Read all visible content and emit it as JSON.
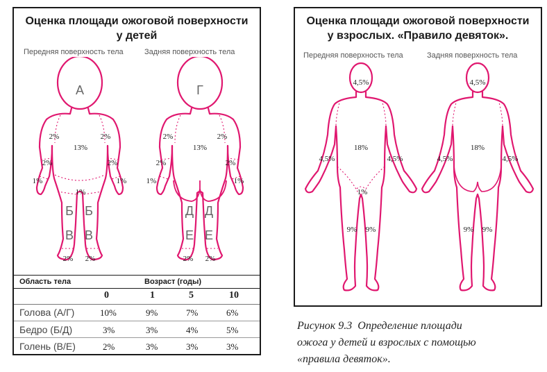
{
  "left": {
    "title_line1": "Оценка площади ожоговой поверхности",
    "title_line2": "у детей",
    "front_label": "Передняя поверхность тела",
    "back_label": "Задняя поверхность тела",
    "front_figure": {
      "head": "А",
      "arm_upper_left": "2%",
      "arm_upper_right": "2%",
      "forearm_left": "2%",
      "forearm_right": "2%",
      "hand_left": "1%",
      "hand_right": "1%",
      "trunk": "13%",
      "genitals": "1%",
      "thigh_left": "Б",
      "thigh_right": "Б",
      "shin_left": "В",
      "shin_right": "В",
      "foot_left": "2%",
      "foot_right": "2%"
    },
    "back_figure": {
      "head": "Г",
      "arm_upper_left": "2%",
      "arm_upper_right": "2%",
      "forearm_left": "2%",
      "forearm_right": "2%",
      "hand_left": "1%",
      "hand_right": "1%",
      "trunk": "13%",
      "thigh_left": "Д",
      "thigh_right": "Д",
      "shin_left": "Е",
      "shin_right": "Е",
      "foot_left": "2%",
      "foot_right": "2%"
    },
    "table": {
      "area_header": "Область тела",
      "age_header": "Возраст (годы)",
      "ages": [
        "0",
        "1",
        "5",
        "10"
      ],
      "rows": [
        {
          "label": "Голова (А/Г)",
          "values": [
            "10%",
            "9%",
            "7%",
            "6%"
          ]
        },
        {
          "label": "Бедро (Б/Д)",
          "values": [
            "3%",
            "3%",
            "4%",
            "5%"
          ]
        },
        {
          "label": "Голень (В/Е)",
          "values": [
            "2%",
            "3%",
            "3%",
            "3%"
          ]
        }
      ]
    }
  },
  "right": {
    "title_line1": "Оценка площади ожоговой поверхности",
    "title_line2": "у взрослых. «Правило девяток».",
    "front_label": "Передняя поверхность тела",
    "back_label": "Задняя поверхность тела",
    "front_figure": {
      "head": "4,5%",
      "trunk": "18%",
      "arm_left": "4,5%",
      "arm_right": "4,5%",
      "genitals": "1%",
      "leg_left": "9%",
      "leg_right": "9%"
    },
    "back_figure": {
      "head": "4,5%",
      "trunk": "18%",
      "arm_left": "4,5%",
      "arm_right": "4,5%",
      "leg_left": "9%",
      "leg_right": "9%"
    }
  },
  "caption": {
    "line1": "Рисунок 9.3  Определение площади",
    "line2": "ожога у детей и взрослых с помощью",
    "line3": "«правила девяток»."
  },
  "colors": {
    "outline": "#e0176f",
    "frame": "#1a1a1a"
  }
}
